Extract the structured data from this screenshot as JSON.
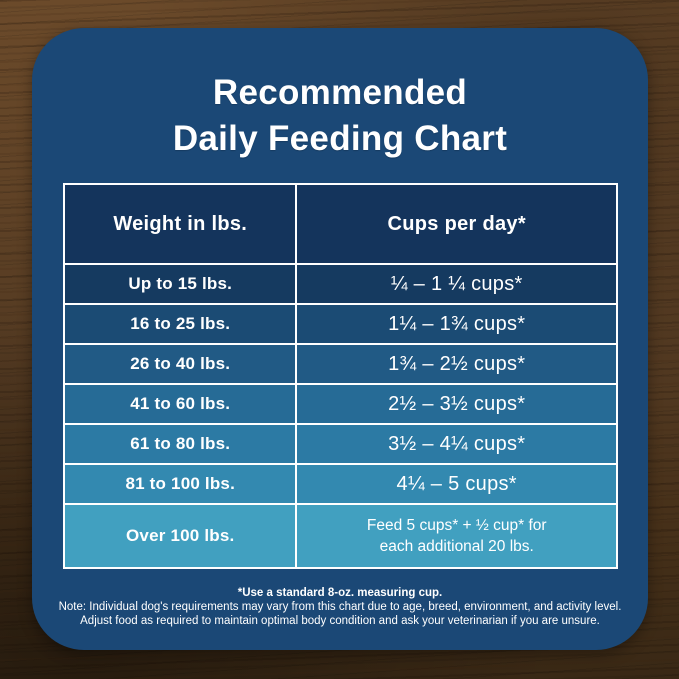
{
  "card": {
    "background_color": "#1b4876"
  },
  "title": {
    "line1": "Recommended",
    "line2": "Daily Feeding Chart"
  },
  "table": {
    "header_bg": "#14345c",
    "headers": {
      "weight": "Weight in lbs.",
      "cups": "Cups per day*"
    },
    "rows": [
      {
        "weight": "Up to 15 lbs.",
        "cups": "¼ – 1 ¼ cups*",
        "bg": "#153a60"
      },
      {
        "weight": "16 to 25 lbs.",
        "cups": "1¼ – 1¾ cups*",
        "bg": "#1b4b74"
      },
      {
        "weight": "26 to 40 lbs.",
        "cups": "1¾ – 2½ cups*",
        "bg": "#215a85"
      },
      {
        "weight": "41 to 60 lbs.",
        "cups": "2½ – 3½ cups*",
        "bg": "#266b96"
      },
      {
        "weight": "61 to 80 lbs.",
        "cups": "3½ – 4¼ cups*",
        "bg": "#2c7aa4"
      },
      {
        "weight": "81 to 100 lbs.",
        "cups": "4¼ – 5 cups*",
        "bg": "#3389b0"
      }
    ],
    "last_row": {
      "weight": "Over 100 lbs.",
      "cups_line1": "Feed 5 cups* + ½ cup* for",
      "cups_line2": "each additional 20 lbs.",
      "bg": "#41a0c0"
    }
  },
  "footnotes": {
    "line1": "*Use a standard 8-oz. measuring cup.",
    "line2": "Note: Individual dog's requirements may vary from this chart due to age, breed, environment, and activity level.",
    "line3": "Adjust food as required to maintain optimal body condition and ask your veterinarian if you are unsure."
  },
  "chart_data": {
    "type": "table",
    "title": "Recommended Daily Feeding Chart",
    "columns": [
      "Weight in lbs.",
      "Cups per day*"
    ],
    "rows": [
      [
        "Up to 15 lbs.",
        "¼ – 1 ¼ cups*"
      ],
      [
        "16 to 25 lbs.",
        "1¼ – 1¾ cups*"
      ],
      [
        "26 to 40 lbs.",
        "1¾ – 2½ cups*"
      ],
      [
        "41 to 60 lbs.",
        "2½ – 3½ cups*"
      ],
      [
        "61 to 80 lbs.",
        "3½ – 4¼ cups*"
      ],
      [
        "81 to 100 lbs.",
        "4¼ – 5 cups*"
      ],
      [
        "Over 100 lbs.",
        "Feed 5 cups* + ½ cup* for each additional 20 lbs."
      ]
    ],
    "annotations": [
      "*Use a standard 8-oz. measuring cup.",
      "Note: Individual dog's requirements may vary from this chart due to age, breed, environment, and activity level. Adjust food as required to maintain optimal body condition and ask your veterinarian if you are unsure."
    ],
    "layout": {
      "row_color_gradient": [
        "#153a60",
        "#41a0c0"
      ],
      "border_color": "#ffffff"
    }
  }
}
